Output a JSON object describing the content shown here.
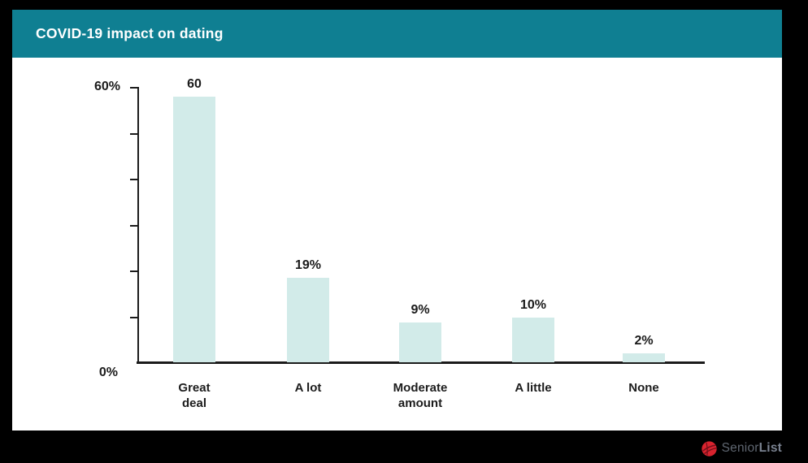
{
  "page": {
    "background_color": "#000000",
    "card_color": "#ffffff"
  },
  "header": {
    "title": "COVID-19 impact on dating",
    "background_color": "#0f7f92",
    "text_color": "#ffffff"
  },
  "chart_data": {
    "type": "bar",
    "title": "COVID-19 impact on dating",
    "categories": [
      "Great deal",
      "A lot",
      "Moderate amount",
      "A little",
      "None"
    ],
    "categories_display_lines": [
      [
        "Great",
        "deal"
      ],
      [
        "A lot"
      ],
      [
        "Moderate",
        "amount"
      ],
      [
        "A little"
      ],
      [
        "None"
      ]
    ],
    "values": [
      60,
      19,
      9,
      10,
      2
    ],
    "value_labels": [
      "60",
      "19%",
      "9%",
      "10%",
      "2%"
    ],
    "xlabel": "",
    "ylabel": "",
    "ylim": [
      0,
      60
    ],
    "y_tick_interval": 10,
    "y_axis_top_label": "60%",
    "y_axis_bottom_label": "0%",
    "grid": false,
    "legend": "none",
    "bar_color": "#d2ebe9",
    "axis_color": "#1b1b1b",
    "label_color": "#1b1b1b"
  },
  "footer": {
    "brand_prefix": "Senior",
    "brand_suffix": "List",
    "logo_icon": "seniorlist-rose-icon",
    "logo_color": "#d8232e"
  }
}
